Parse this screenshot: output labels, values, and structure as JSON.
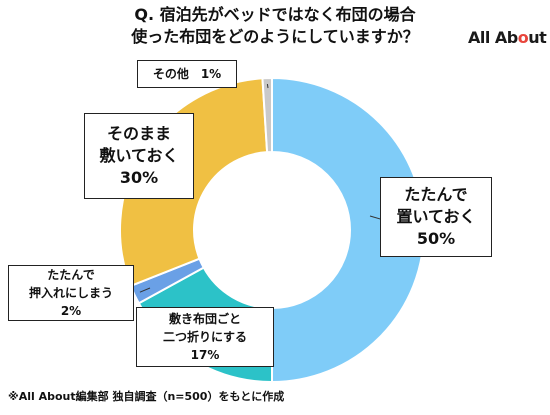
{
  "header": {
    "title_line1": "Q. 宿泊先がベッドではなく布団の場合",
    "title_line2": "使った布団をどのようにしていますか？",
    "logo_text_a": "All Ab",
    "logo_text_o": "o",
    "logo_text_b": "ut"
  },
  "footnote": "※All About編集部 独自調査（n=500）をもとに作成",
  "chart_data": {
    "type": "pie",
    "donut": true,
    "title": "Q. 宿泊先がベッドではなく布団の場合 使った布団をどのようにしていますか？",
    "slices": [
      {
        "lines": [
          "たたんで",
          "置いておく",
          "50%"
        ],
        "value": 50,
        "color": "#7fccf8"
      },
      {
        "lines": [
          "敷き布団ごと",
          "二つ折りにする",
          "17%"
        ],
        "value": 17,
        "color": "#2cc2c8"
      },
      {
        "lines": [
          "たたんで",
          "押入れにしまう",
          "2%"
        ],
        "value": 2,
        "color": "#6aa0e6"
      },
      {
        "lines": [
          "そのまま",
          "敷いておく",
          "30%"
        ],
        "value": 30,
        "color": "#f0c043"
      },
      {
        "lines": [
          "その他　1%"
        ],
        "value": 1,
        "color": "#c9c9c9"
      }
    ]
  }
}
